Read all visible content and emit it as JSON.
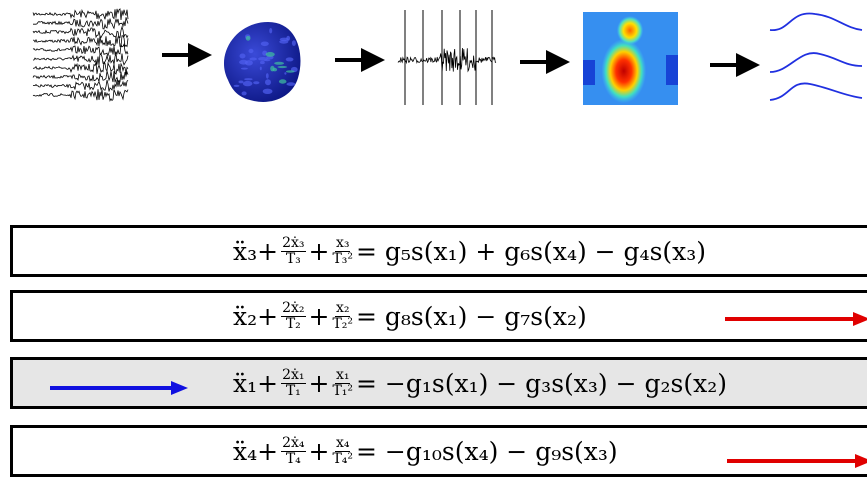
{
  "rows": [
    {
      "terms": [
        "ẍ₃+",
        {
          "num": "2ẋ₃",
          "den": "T₃"
        },
        "+",
        {
          "num": "x₃",
          "den": "T₃²"
        },
        "= g₅s(x₁) + g₆s(x₄) − g₄s(x₃)"
      ]
    },
    {
      "terms": [
        "ẍ₂+",
        {
          "num": "2ẋ₂",
          "den": "T₂"
        },
        "+",
        {
          "num": "x₂",
          "den": "T₂²"
        },
        "= g₈s(x₁) − g₇s(x₂)"
      ]
    },
    {
      "terms": [
        "ẍ₁+",
        {
          "num": "2ẋ₁",
          "den": "T₁"
        },
        "+",
        {
          "num": "x₁",
          "den": "T₁²"
        },
        "= −g₁s(x₁) − g₃s(x₃) − g₂s(x₂)"
      ]
    },
    {
      "terms": [
        "ẍ₄+",
        {
          "num": "2ẋ₄",
          "den": "T₄"
        },
        "+",
        {
          "num": "x₄",
          "den": "T₄²"
        },
        "= −g₁₀s(x₄) − g₉s(x₃)"
      ]
    }
  ]
}
